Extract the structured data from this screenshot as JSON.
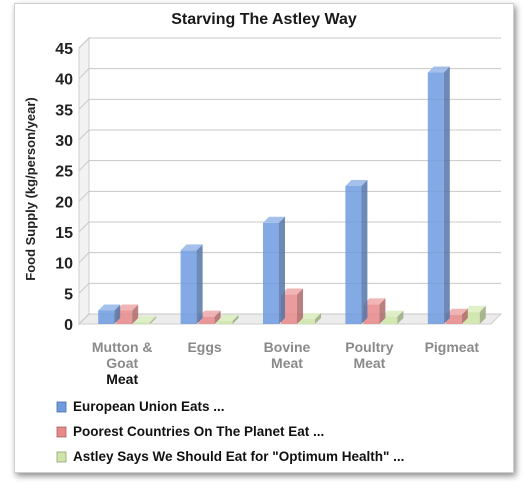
{
  "chart_data": {
    "type": "bar",
    "title": "Starving The Astley Way",
    "ylabel": "Food Supply (kg/person/year)",
    "xlabel": "",
    "ylim": [
      0,
      45
    ],
    "yticks": [
      "0",
      "5",
      "10",
      "15",
      "20",
      "25",
      "30",
      "35",
      "40",
      "45"
    ],
    "grid": true,
    "legend_position": "bottom",
    "categories": [
      [
        "Mutton &",
        "Goat",
        "Meat"
      ],
      [
        "Eggs"
      ],
      [
        "Bovine",
        "Meat"
      ],
      [
        "Poultry",
        "Meat"
      ],
      [
        "Pigmeat"
      ]
    ],
    "series": [
      {
        "name": "European Union Eats ...",
        "color": "#6f9be0",
        "values": [
          2.2,
          12,
          16.5,
          22.5,
          41
        ]
      },
      {
        "name": "Poorest Countries On The Planet Eat ...",
        "color": "#e88a8a",
        "values": [
          2.2,
          1.2,
          4.8,
          3.2,
          1.5
        ]
      },
      {
        "name": "Astley Says We Should Eat for \"Optimum Health\" ...",
        "color": "#cfe6a8",
        "values": [
          0.3,
          0.5,
          0.8,
          1.2,
          2.0
        ]
      }
    ]
  }
}
